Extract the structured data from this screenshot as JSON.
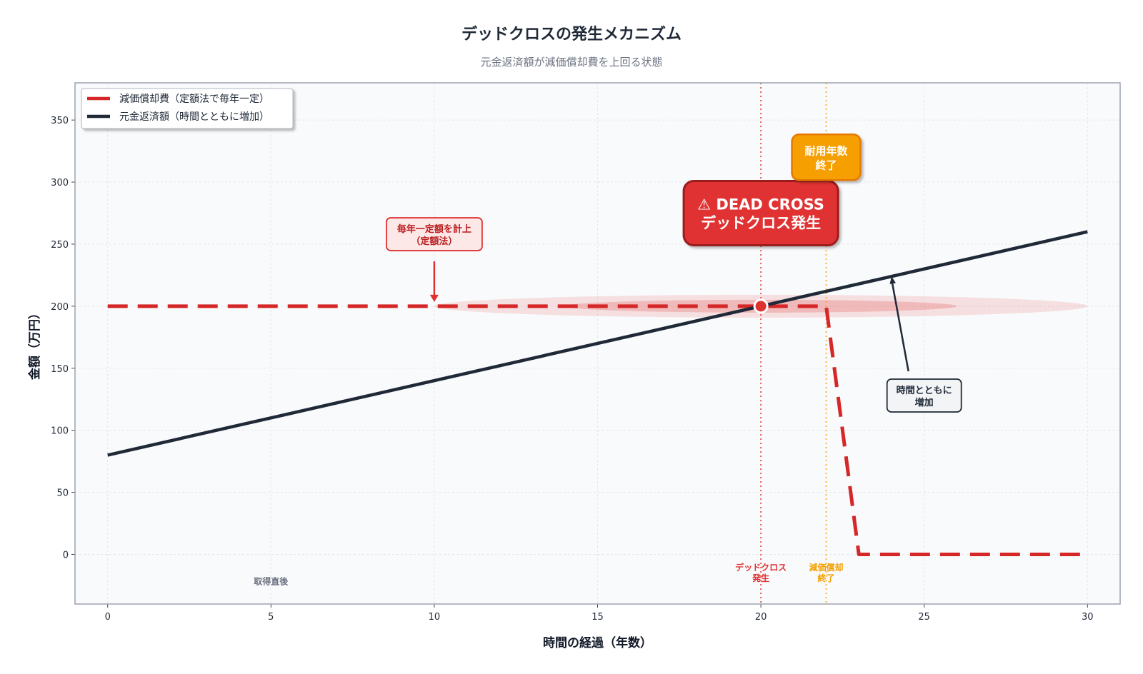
{
  "colors": {
    "depreciation": "#d62728",
    "principal": "#1f2937",
    "dead_cross": "#e03131",
    "useful_life": "#f59f00",
    "plot_bg": "#f9fafb",
    "frame": "#9ca3af"
  },
  "chart_data": {
    "type": "line",
    "title": "デッドクロスの発生メカニズム",
    "subtitle": "元金返済額が減価償却費を上回る状態",
    "xlabel": "時間の経過（年数）",
    "ylabel": "金額（万円）",
    "xlim": [
      -1,
      31
    ],
    "ylim": [
      -40,
      380
    ],
    "xticks": [
      0,
      5,
      10,
      15,
      20,
      25,
      30
    ],
    "yticks": [
      0,
      50,
      100,
      150,
      200,
      250,
      300,
      350
    ],
    "grid": true,
    "legend_position": "top-left",
    "series": [
      {
        "name": "減価償却費（定額法で毎年一定）",
        "style": "dashed",
        "points": [
          [
            0,
            200
          ],
          [
            22,
            200
          ],
          [
            23,
            0
          ],
          [
            30,
            0
          ]
        ]
      },
      {
        "name": "元金返済額（時間とともに増加）",
        "style": "solid",
        "points": [
          [
            0,
            80
          ],
          [
            30,
            260
          ]
        ]
      }
    ],
    "vlines": [
      {
        "x": 20,
        "label": "デッドクロス\n発生",
        "color": "#e03131"
      },
      {
        "x": 22,
        "label": "減価償却\n終了",
        "color": "#f59f00"
      }
    ],
    "dead_cross_point": [
      20,
      200
    ],
    "annotations": [
      {
        "id": "deadcross",
        "text": "⚠ DEAD CROSS\nデッドクロス発生",
        "x": 20,
        "y": 275
      },
      {
        "id": "useful",
        "text": "耐用年数\n終了",
        "x": 22,
        "y": 320
      },
      {
        "id": "flat",
        "text": "毎年一定額を計上\n（定額法）",
        "x": 10,
        "y": 258,
        "arrow_to": [
          10,
          200
        ]
      },
      {
        "id": "increase",
        "text": "時間とともに\n増加",
        "x": 25,
        "y": 128,
        "arrow_to": [
          24,
          224
        ]
      },
      {
        "id": "start",
        "text": "取得直後",
        "x": 5,
        "y": -22
      }
    ]
  }
}
